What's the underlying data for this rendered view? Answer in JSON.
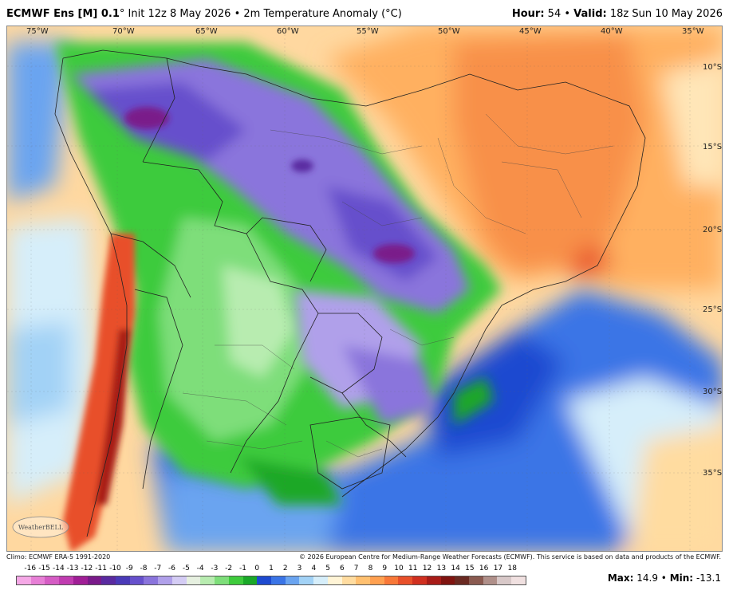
{
  "header": {
    "model": "ECMWF Ens [M] 0.1",
    "degree": "°",
    "init": "Init 12z 8 May 2026",
    "bullet": "•",
    "field": "2m Temperature Anomaly (°C)",
    "hour_label": "Hour:",
    "hour_value": "54",
    "valid_label": "Valid:",
    "valid_value": "18z Sun 10 May 2026"
  },
  "map": {
    "lon_labels": [
      "75°W",
      "70°W",
      "65°W",
      "60°W",
      "55°W",
      "50°W",
      "45°W",
      "40°W",
      "35°W"
    ],
    "lat_labels": [
      "10°S",
      "15°S",
      "20°S",
      "25°S",
      "30°S",
      "35°S"
    ],
    "logo_text": "WeatherBELL"
  },
  "footer": {
    "climo": "Climo: ECMWF ERA-5 1991-2020",
    "copyright": "© 2026 European Centre for Medium-Range Weather Forecasts (ECMWF). This service is based on data and products of the ECMWF."
  },
  "colorbar": {
    "labels": [
      "-16",
      "-15",
      "-14",
      "-13",
      "-12",
      "-11",
      "-10",
      "-9",
      "-8",
      "-7",
      "-6",
      "-5",
      "-4",
      "-3",
      "-2",
      "-1",
      "0",
      "1",
      "2",
      "3",
      "4",
      "5",
      "6",
      "7",
      "8",
      "9",
      "10",
      "11",
      "12",
      "13",
      "14",
      "15",
      "16",
      "17",
      "18"
    ],
    "colors": [
      "#f5a8e6",
      "#e77fd6",
      "#d55cc4",
      "#c03cb0",
      "#a01e96",
      "#7a1a8a",
      "#5a2aa0",
      "#4a3ab8",
      "#6650cc",
      "#8a74dc",
      "#b0a0ea",
      "#d4ccf4",
      "#e6f0e0",
      "#b8ecb0",
      "#7ede7a",
      "#3ecb3c",
      "#1aa828",
      "#1e4ad0",
      "#3a74e6",
      "#6aa4f0",
      "#a2d2f6",
      "#d6eefa",
      "#fff4d6",
      "#ffdca0",
      "#ffc070",
      "#ffa050",
      "#f87838",
      "#e8502a",
      "#d03020",
      "#a81c18",
      "#801410",
      "#6a2a22",
      "#8a5a50",
      "#b0908a",
      "#d8c8c8",
      "#f0e0e0"
    ]
  },
  "stats": {
    "max_label": "Max:",
    "max_value": "14.9",
    "bullet": "•",
    "min_label": "Min:",
    "min_value": "-13.1"
  }
}
